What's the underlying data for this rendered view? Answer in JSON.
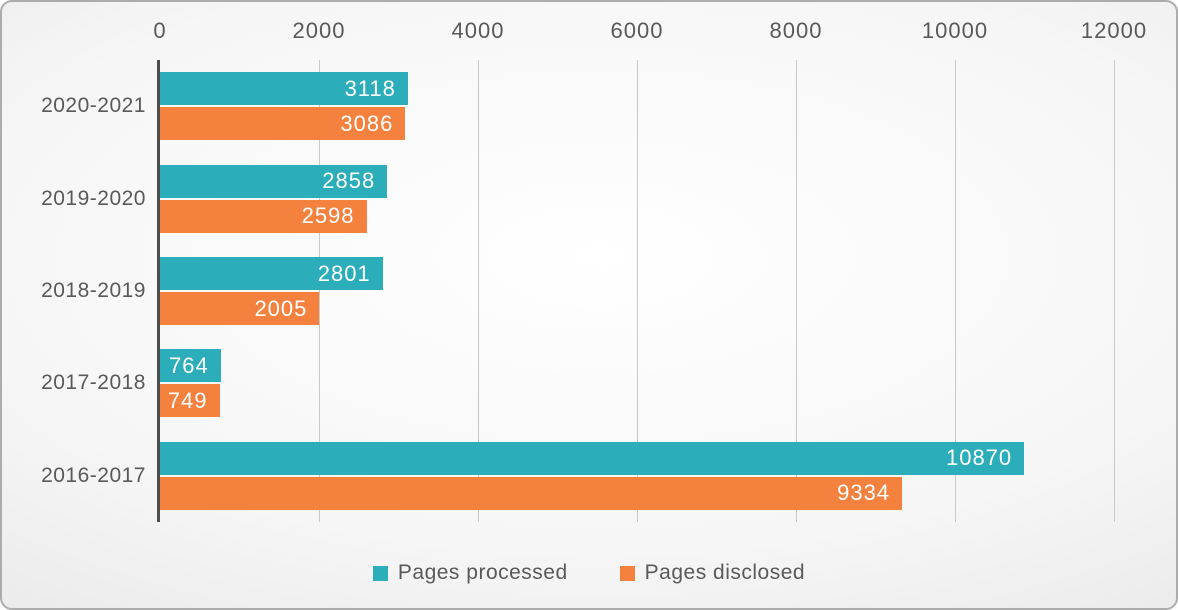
{
  "chart_data": {
    "type": "bar",
    "orientation": "horizontal-grouped",
    "title": "",
    "categories": [
      "2020-2021",
      "2019-2020",
      "2018-2019",
      "2017-2018",
      "2016-2017"
    ],
    "series": [
      {
        "name": "Pages processed",
        "color": "#2cadba",
        "values": [
          3118,
          2858,
          2801,
          764,
          10870
        ]
      },
      {
        "name": "Pages disclosed",
        "color": "#f5813e",
        "values": [
          3086,
          2598,
          2005,
          749,
          9334
        ]
      }
    ],
    "x_axis": {
      "position": "top",
      "min": 0,
      "max": 12000,
      "tick_interval": 2000,
      "ticks": [
        0,
        2000,
        4000,
        6000,
        8000,
        10000,
        12000
      ],
      "tick_labels": [
        "0",
        "2000",
        "4000",
        "6000",
        "8000",
        "10000",
        "12000"
      ]
    },
    "grid": true,
    "data_labels": {
      "position": "inside-end",
      "color": "#ffffff"
    },
    "legend": {
      "position": "bottom",
      "items": [
        "Pages processed",
        "Pages disclosed"
      ]
    }
  },
  "colors": {
    "teal": "#2cadba",
    "orange": "#f5813e",
    "axis_text": "#595959",
    "grid_line": "#c9c9c9",
    "axis_line": "#4d4d4d",
    "slide_border": "#acacac",
    "value_label": "#ffffff"
  }
}
